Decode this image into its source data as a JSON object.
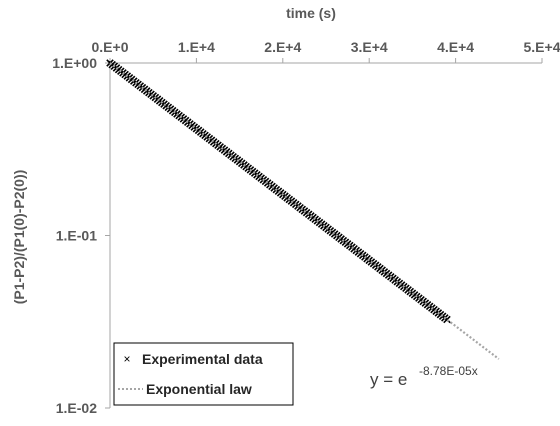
{
  "chart_data": {
    "type": "scatter",
    "x_label": "time (s)",
    "y_label": "(P1-P2)/(P1(0)-P2(0))",
    "x_axis_position": "top",
    "x_range": [
      0,
      50000
    ],
    "y_range": [
      0.01,
      1
    ],
    "y_scale": "log",
    "grid": false,
    "x_tick_labels": [
      "0.E+0",
      "1.E+4",
      "2.E+4",
      "3.E+4",
      "4.E+4",
      "5.E+4"
    ],
    "x_tick_values": [
      0,
      10000,
      20000,
      30000,
      40000,
      50000
    ],
    "y_tick_labels": [
      "1.E+00",
      "1.E-01",
      "1.E-02"
    ],
    "y_tick_values": [
      1,
      0.1,
      0.01
    ],
    "legend_position": "bottom-left",
    "series": [
      {
        "name": "Experimental data",
        "kind": "markers",
        "marker": "x",
        "color": "#000000",
        "x_start": 0,
        "x_end": 39000,
        "x_step": 250,
        "rate": 8.78e-05
      },
      {
        "name": "Exponential law",
        "kind": "line",
        "style": "dotted",
        "color": "#a6a6a6",
        "x_start": 0,
        "x_end": 45000,
        "rate": 8.78e-05
      }
    ],
    "annotation": {
      "base": "y = e",
      "exponent": "-8.78E-05x"
    }
  }
}
